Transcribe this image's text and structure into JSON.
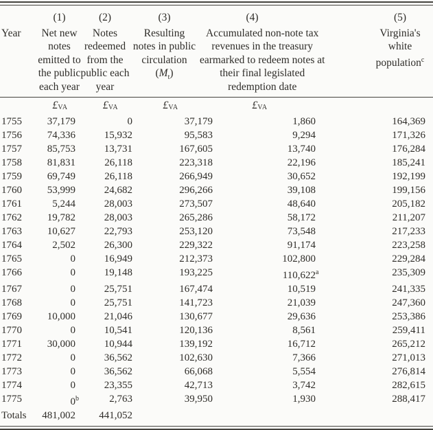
{
  "page": {
    "background": "#fbfbf9",
    "text_color": "#2e2c28",
    "rule_color": "#44423e"
  },
  "table": {
    "column_numbers": [
      "(1)",
      "(2)",
      "(3)",
      "(4)",
      "(5)"
    ],
    "year_header": "Year",
    "currency": {
      "symbol": "£",
      "subscript": "VA"
    },
    "headers": {
      "col1_lines": [
        "Net new",
        "notes",
        "emitted to",
        "the public",
        "each year"
      ],
      "col2_lines": [
        "Notes",
        "redeemed",
        "from the",
        "public each",
        "year"
      ],
      "col3_lines": [
        "Resulting",
        "notes in public",
        "circulation"
      ],
      "col3_math": {
        "open": "(",
        "symbol": "M",
        "subscript": "t",
        "close": ")"
      },
      "col4_lines": [
        "Accumulated non-note tax",
        "revenues in the treasury",
        "earmarked to redeem notes at",
        "their final legislated",
        "redemption date"
      ],
      "col5_lines": [
        "Virginia's",
        "white"
      ],
      "col5_last": "population",
      "col5_sup": "c"
    },
    "rows": [
      {
        "year": "1755",
        "c1": "37,179",
        "c2": "0",
        "c3": "37,179",
        "c4": "1,860",
        "c5": "164,369"
      },
      {
        "year": "1756",
        "c1": "74,336",
        "c2": "15,932",
        "c3": "95,583",
        "c4": "9,294",
        "c5": "171,326"
      },
      {
        "year": "1757",
        "c1": "85,753",
        "c2": "13,731",
        "c3": "167,605",
        "c4": "13,740",
        "c5": "176,284"
      },
      {
        "year": "1758",
        "c1": "81,831",
        "c2": "26,118",
        "c3": "223,318",
        "c4": "22,196",
        "c5": "185,241"
      },
      {
        "year": "1759",
        "c1": "69,749",
        "c2": "26,118",
        "c3": "266,949",
        "c4": "30,652",
        "c5": "192,199"
      },
      {
        "year": "1760",
        "c1": "53,999",
        "c2": "24,682",
        "c3": "296,266",
        "c4": "39,108",
        "c5": "199,156"
      },
      {
        "year": "1761",
        "c1": "5,244",
        "c2": "28,003",
        "c3": "273,507",
        "c4": "48,640",
        "c5": "205,182"
      },
      {
        "year": "1762",
        "c1": "19,782",
        "c2": "28,003",
        "c3": "265,286",
        "c4": "58,172",
        "c5": "211,207"
      },
      {
        "year": "1763",
        "c1": "10,627",
        "c2": "22,793",
        "c3": "253,120",
        "c4": "73,548",
        "c5": "217,233"
      },
      {
        "year": "1764",
        "c1": "2,502",
        "c2": "26,300",
        "c3": "229,322",
        "c4": "91,174",
        "c5": "223,258"
      },
      {
        "year": "1765",
        "c1": "0",
        "c2": "16,949",
        "c3": "212,373",
        "c4": "102,800",
        "c5": "229,284"
      },
      {
        "year": "1766",
        "c1": "0",
        "c2": "19,148",
        "c3": "193,225",
        "c4": "110,622",
        "c4sup": "a",
        "c5": "235,309"
      },
      {
        "year": "1767",
        "c1": "0",
        "c2": "25,751",
        "c3": "167,474",
        "c4": "10,519",
        "c5": "241,335"
      },
      {
        "year": "1768",
        "c1": "0",
        "c2": "25,751",
        "c3": "141,723",
        "c4": "21,039",
        "c5": "247,360"
      },
      {
        "year": "1769",
        "c1": "10,000",
        "c2": "21,046",
        "c3": "130,677",
        "c4": "29,636",
        "c5": "253,386"
      },
      {
        "year": "1770",
        "c1": "0",
        "c2": "10,541",
        "c3": "120,136",
        "c4": "8,561",
        "c5": "259,411"
      },
      {
        "year": "1771",
        "c1": "30,000",
        "c2": "10,944",
        "c3": "139,192",
        "c4": "16,712",
        "c5": "265,212"
      },
      {
        "year": "1772",
        "c1": "0",
        "c2": "36,562",
        "c3": "102,630",
        "c4": "7,366",
        "c5": "271,013"
      },
      {
        "year": "1773",
        "c1": "0",
        "c2": "36,562",
        "c3": "66,068",
        "c4": "5,554",
        "c5": "276,814"
      },
      {
        "year": "1774",
        "c1": "0",
        "c2": "23,355",
        "c3": "42,713",
        "c4": "3,742",
        "c5": "282,615"
      },
      {
        "year": "1775",
        "c1": "0",
        "c1sup": "b",
        "c2": "2,763",
        "c3": "39,950",
        "c4": "1,930",
        "c5": "288,417"
      }
    ],
    "totals": {
      "label": "Totals",
      "c1": "481,002",
      "c2": "441,052"
    }
  }
}
